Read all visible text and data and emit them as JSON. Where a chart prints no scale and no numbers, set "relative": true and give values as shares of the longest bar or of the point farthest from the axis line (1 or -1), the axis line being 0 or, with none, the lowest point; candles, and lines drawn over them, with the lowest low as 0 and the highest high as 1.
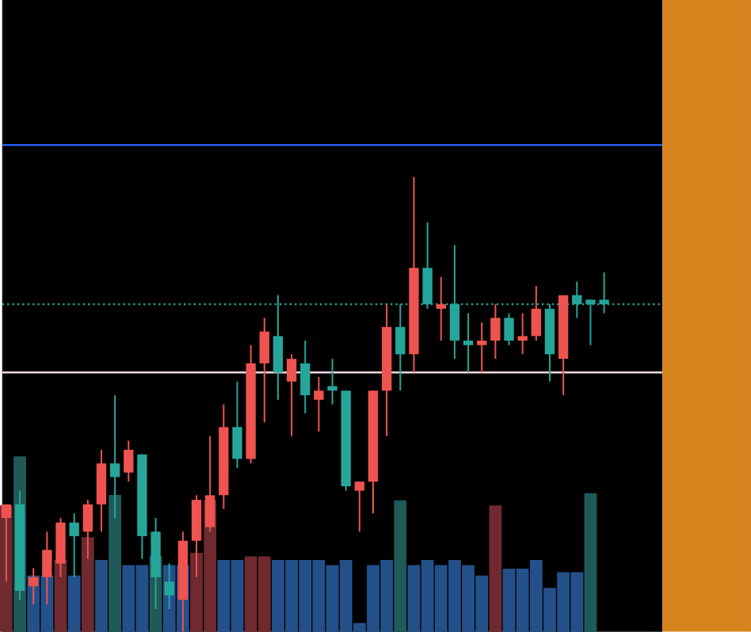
{
  "chart_data": [
    {
      "type": "candlestick",
      "relative": true,
      "categories": [
        null,
        null,
        null,
        null,
        null,
        null,
        null,
        null,
        null,
        null,
        null,
        null,
        null,
        null,
        null,
        null,
        null,
        null,
        null,
        null,
        null,
        null,
        null,
        null,
        null,
        null,
        null,
        null,
        null,
        null,
        null,
        null,
        null,
        null,
        null,
        null,
        null,
        null,
        null,
        null,
        null,
        null,
        null,
        null,
        null
      ],
      "ohlc": [
        [
          0.25,
          0.28,
          0.11,
          0.28
        ],
        [
          0.28,
          0.31,
          0.07,
          0.09
        ],
        [
          0.1,
          0.14,
          0.06,
          0.12
        ],
        [
          0.12,
          0.22,
          0.06,
          0.18
        ],
        [
          0.15,
          0.25,
          0.12,
          0.24
        ],
        [
          0.24,
          0.26,
          0.12,
          0.21
        ],
        [
          0.22,
          0.29,
          0.16,
          0.28
        ],
        [
          0.28,
          0.4,
          0.22,
          0.37
        ],
        [
          0.37,
          0.52,
          0.25,
          0.34
        ],
        [
          0.35,
          0.42,
          0.33,
          0.4
        ],
        [
          0.39,
          0.39,
          0.16,
          0.21
        ],
        [
          0.22,
          0.25,
          0.05,
          0.12
        ],
        [
          0.11,
          0.15,
          0.05,
          0.08
        ],
        [
          0.07,
          0.22,
          0,
          0.2
        ],
        [
          0.2,
          0.3,
          0.12,
          0.29
        ],
        [
          0.23,
          0.43,
          0.22,
          0.3
        ],
        [
          0.3,
          0.5,
          0.27,
          0.45
        ],
        [
          0.45,
          0.55,
          0.36,
          0.38
        ],
        [
          0.38,
          0.63,
          0.37,
          0.59
        ],
        [
          0.59,
          0.69,
          0.46,
          0.66
        ],
        [
          0.65,
          0.74,
          0.51,
          0.57
        ],
        [
          0.55,
          0.61,
          0.43,
          0.6
        ],
        [
          0.59,
          0.64,
          0.48,
          0.52
        ],
        [
          0.51,
          0.56,
          0.44,
          0.53
        ],
        [
          0.54,
          0.6,
          0.5,
          0.53
        ],
        [
          0.53,
          0.53,
          0.31,
          0.32
        ],
        [
          0.31,
          0.33,
          0.22,
          0.33
        ],
        [
          0.33,
          0.53,
          0.26,
          0.53
        ],
        [
          0.53,
          0.72,
          0.43,
          0.67
        ],
        [
          0.67,
          0.72,
          0.53,
          0.61
        ],
        [
          0.61,
          1,
          0.57,
          0.8
        ],
        [
          0.8,
          0.9,
          0.71,
          0.72
        ],
        [
          0.71,
          0.78,
          0.64,
          0.72
        ],
        [
          0.72,
          0.85,
          0.6,
          0.64
        ],
        [
          0.64,
          0.7,
          0.57,
          0.63
        ],
        [
          0.63,
          0.68,
          0.57,
          0.64
        ],
        [
          0.64,
          0.72,
          0.6,
          0.69
        ],
        [
          0.69,
          0.7,
          0.63,
          0.64
        ],
        [
          0.64,
          0.7,
          0.61,
          0.65
        ],
        [
          0.65,
          0.76,
          0.64,
          0.71
        ],
        [
          0.71,
          0.72,
          0.55,
          0.61
        ],
        [
          0.6,
          0.74,
          0.52,
          0.74
        ],
        [
          0.74,
          0.77,
          0.69,
          0.72
        ],
        [
          0.73,
          0.73,
          0.63,
          0.72
        ],
        [
          0.73,
          0.79,
          0.7,
          0.72
        ]
      ],
      "colors": [
        "#ef5350",
        "#26a69a",
        "#ef5350",
        "#ef5350",
        "#ef5350",
        "#26a69a",
        "#ef5350",
        "#ef5350",
        "#26a69a",
        "#ef5350",
        "#26a69a",
        "#26a69a",
        "#26a69a",
        "#ef5350",
        "#ef5350",
        "#ef5350",
        "#ef5350",
        "#26a69a",
        "#ef5350",
        "#ef5350",
        "#26a69a",
        "#ef5350",
        "#26a69a",
        "#ef5350",
        "#26a69a",
        "#26a69a",
        "#ef5350",
        "#ef5350",
        "#ef5350",
        "#26a69a",
        "#ef5350",
        "#26a69a",
        "#ef5350",
        "#26a69a",
        "#26a69a",
        "#ef5350",
        "#ef5350",
        "#26a69a",
        "#ef5350",
        "#ef5350",
        "#26a69a",
        "#ef5350",
        "#26a69a",
        "#26a69a",
        "#26a69a"
      ],
      "ref_lines": [
        {
          "axis": "y",
          "value": 1.07,
          "color": "#2962ff",
          "line_style": "solid"
        },
        {
          "axis": "y",
          "value": 0.72,
          "color": "#26a69a",
          "line_style": "dotted"
        },
        {
          "axis": "y",
          "value": 0.57,
          "color": "#f0d8dc",
          "line_style": "solid"
        }
      ]
    },
    {
      "type": "bar",
      "relative": true,
      "categories": [
        null,
        null,
        null,
        null,
        null,
        null,
        null,
        null,
        null,
        null,
        null,
        null,
        null,
        null,
        null,
        null,
        null,
        null,
        null,
        null,
        null,
        null,
        null,
        null,
        null,
        null,
        null,
        null,
        null,
        null,
        null,
        null,
        null,
        null,
        null,
        null,
        null,
        null,
        null,
        null,
        null,
        null,
        null,
        null,
        null
      ],
      "values": [
        0.72,
        1,
        0.32,
        0.32,
        0.41,
        0.32,
        0.54,
        0.41,
        0.78,
        0.38,
        0.38,
        0.43,
        0.38,
        0.38,
        0.45,
        0.75,
        0.41,
        0.41,
        0.43,
        0.43,
        0.41,
        0.41,
        0.41,
        0.41,
        0.38,
        0.41,
        0.05,
        0.38,
        0.41,
        0.75,
        0.38,
        0.41,
        0.38,
        0.41,
        0.38,
        0.32,
        0.72,
        0.36,
        0.36,
        0.41,
        0.25,
        0.34,
        0.34,
        0.79,
        null
      ],
      "colors": [
        "#6e2a2e",
        "#1f5a58",
        "#24508a",
        "#24508a",
        "#6e2a2e",
        "#24508a",
        "#6e2a2e",
        "#24508a",
        "#1f5a58",
        "#24508a",
        "#24508a",
        "#1f5a58",
        "#24508a",
        "#24508a",
        "#6e2a2e",
        "#6e2a2e",
        "#24508a",
        "#24508a",
        "#6e2a2e",
        "#6e2a2e",
        "#24508a",
        "#24508a",
        "#24508a",
        "#24508a",
        "#24508a",
        "#24508a",
        "#24508a",
        "#24508a",
        "#24508a",
        "#1f5a58",
        "#24508a",
        "#24508a",
        "#24508a",
        "#24508a",
        "#24508a",
        "#24508a",
        "#6e2a2e",
        "#24508a",
        "#24508a",
        "#24508a",
        "#24508a",
        "#24508a",
        "#24508a",
        "#1f5a58",
        "#24508a"
      ]
    }
  ]
}
